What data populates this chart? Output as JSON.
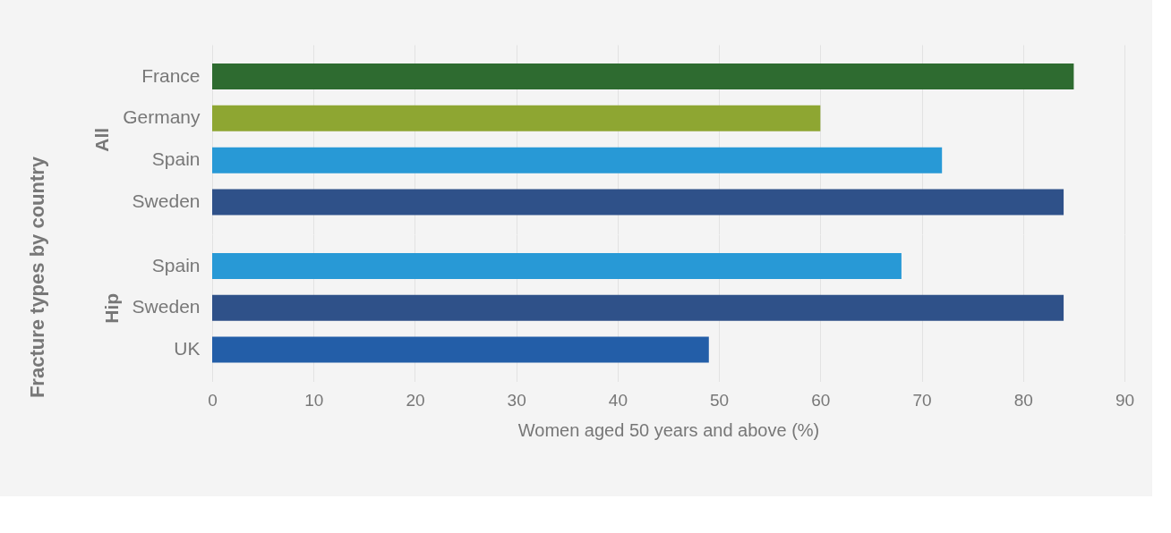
{
  "chart_data": [
    {
      "type": "bar",
      "orientation": "horizontal",
      "ylabel": "All",
      "annotations": [
        "Fracture types by country"
      ],
      "categories": [
        "France",
        "Germany",
        "Spain",
        "Sweden"
      ],
      "values": [
        85,
        60,
        72,
        84
      ],
      "colors": [
        "#2e6b30",
        "#8ea632",
        "#2899d6",
        "#2f5189"
      ],
      "xlim": [
        0,
        90
      ],
      "xticks": [
        0,
        10,
        20,
        30,
        40,
        50,
        60,
        70,
        80,
        90
      ],
      "grid": "x",
      "tick_labels": "y"
    },
    {
      "type": "bar",
      "orientation": "horizontal",
      "ylabel": "Hip",
      "xlabel": "Women aged 50 years and above (%)",
      "categories": [
        "Spain",
        "Sweden",
        "UK"
      ],
      "values": [
        68,
        84,
        49
      ],
      "colors": [
        "#2899d6",
        "#2f5189",
        "#235ea8"
      ],
      "xlim": [
        0,
        90
      ],
      "xticks": [
        0,
        10,
        20,
        30,
        40,
        50,
        60,
        70,
        80,
        90
      ],
      "grid": "x"
    }
  ]
}
